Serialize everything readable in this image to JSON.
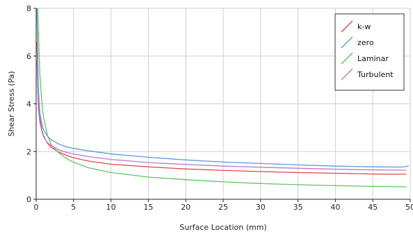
{
  "chart_data": {
    "type": "line",
    "title": "",
    "xlabel": "Surface Location (mm)",
    "ylabel": "Shear Stress (Pa)",
    "xlim": [
      0,
      50
    ],
    "ylim": [
      0,
      8
    ],
    "x_ticks": [
      0,
      5,
      10,
      15,
      20,
      25,
      30,
      35,
      40,
      45,
      50
    ],
    "y_ticks": [
      0,
      2,
      4,
      6,
      8
    ],
    "x_tick_labels": [
      "0",
      "5",
      "10",
      "15",
      "20",
      "25",
      "30",
      "35",
      "40",
      "45",
      "50"
    ],
    "y_tick_labels": [
      "0",
      "2",
      "4",
      "6",
      "8"
    ],
    "grid": true,
    "legend_position": "top-right",
    "series": [
      {
        "name": "k-w",
        "color": "#e8464e",
        "x": [
          0.1,
          0.2,
          0.3,
          0.5,
          0.8,
          1,
          1.5,
          2,
          3,
          4,
          5,
          7,
          10,
          15,
          20,
          25,
          30,
          35,
          40,
          45,
          49.5
        ],
        "y": [
          6.6,
          5.2,
          4.2,
          3.4,
          2.85,
          2.65,
          2.35,
          2.18,
          1.98,
          1.85,
          1.74,
          1.6,
          1.47,
          1.36,
          1.27,
          1.21,
          1.16,
          1.12,
          1.09,
          1.06,
          1.05
        ]
      },
      {
        "name": "zero",
        "color": "#5b9bd5",
        "x": [
          0.1,
          0.2,
          0.3,
          0.5,
          0.8,
          1,
          1.5,
          2,
          3,
          4,
          5,
          7,
          10,
          15,
          20,
          25,
          30,
          35,
          40,
          45,
          49,
          49.8
        ],
        "y": [
          8,
          6.0,
          4.6,
          3.6,
          3.1,
          2.9,
          2.65,
          2.5,
          2.32,
          2.2,
          2.13,
          2.03,
          1.9,
          1.76,
          1.65,
          1.56,
          1.5,
          1.44,
          1.39,
          1.36,
          1.35,
          1.4
        ]
      },
      {
        "name": "Laminar",
        "color": "#5fc45f",
        "x": [
          0.2,
          0.3,
          0.5,
          0.8,
          1,
          1.5,
          2,
          3,
          4,
          5,
          7,
          10,
          15,
          20,
          25,
          30,
          35,
          40,
          45,
          49.5
        ],
        "y": [
          8,
          7.0,
          5.2,
          3.9,
          3.4,
          2.7,
          2.3,
          1.95,
          1.72,
          1.55,
          1.32,
          1.12,
          0.93,
          0.82,
          0.73,
          0.66,
          0.61,
          0.57,
          0.54,
          0.52
        ]
      },
      {
        "name": "Turbulent",
        "color": "#b57ad0",
        "x": [
          0.1,
          0.2,
          0.3,
          0.5,
          0.8,
          1,
          1.5,
          2,
          3,
          4,
          5,
          7,
          10,
          15,
          20,
          25,
          30,
          35,
          40,
          45,
          49.5
        ],
        "y": [
          5.8,
          4.6,
          3.8,
          3.2,
          2.8,
          2.6,
          2.38,
          2.25,
          2.08,
          1.97,
          1.9,
          1.79,
          1.67,
          1.54,
          1.46,
          1.39,
          1.34,
          1.3,
          1.26,
          1.23,
          1.22
        ]
      }
    ]
  }
}
